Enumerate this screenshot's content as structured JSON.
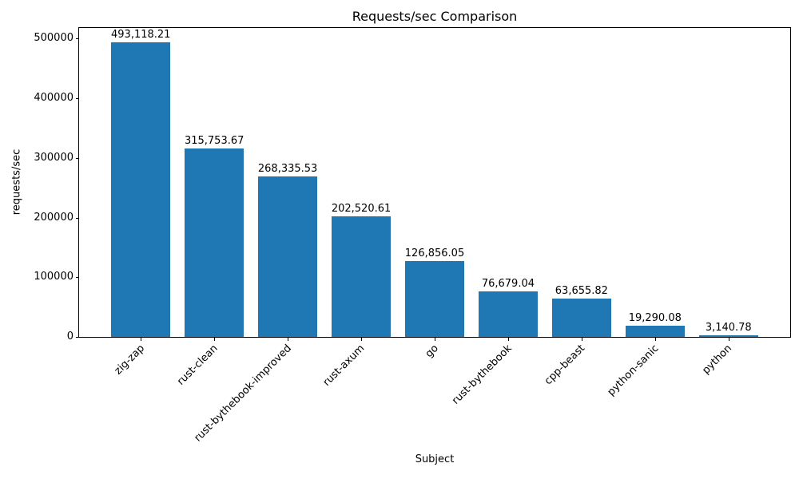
{
  "chart_data": {
    "type": "bar",
    "title": "Requests/sec Comparison",
    "xlabel": "Subject",
    "ylabel": "requests/sec",
    "categories": [
      "zig-zap",
      "rust-clean",
      "rust-bythebook-improved",
      "rust-axum",
      "go",
      "rust-bythebook",
      "cpp-beast",
      "python-sanic",
      "python"
    ],
    "values": [
      493118.21,
      315753.67,
      268335.53,
      202520.61,
      126856.05,
      76679.04,
      63655.82,
      19290.08,
      3140.78
    ],
    "value_labels": [
      "493,118.21",
      "315,753.67",
      "268,335.53",
      "202,520.61",
      "126,856.05",
      "76,679.04",
      "63,655.82",
      "19,290.08",
      "3,140.78"
    ],
    "bar_color": "#1f77b4",
    "text_color": "#000000",
    "background_color": "#ffffff",
    "ylim": [
      0,
      517774
    ],
    "yticks": [
      0,
      100000,
      200000,
      300000,
      400000,
      500000
    ],
    "ytick_labels": [
      "0",
      "100000",
      "200000",
      "300000",
      "400000",
      "500000"
    ],
    "xlim": [
      -0.84,
      8.84
    ],
    "bar_width": 0.8,
    "grid": false,
    "legend": null,
    "tick_label_rotation": 45
  }
}
